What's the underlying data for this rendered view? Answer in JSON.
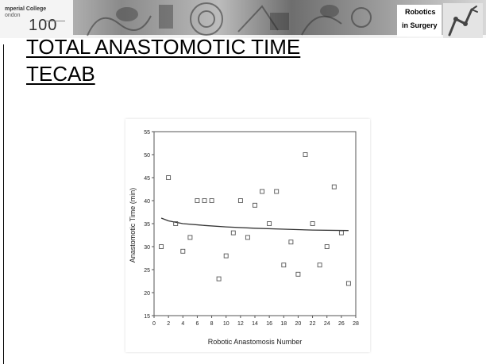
{
  "header": {
    "logo_line1": "mperial College",
    "logo_line2": "ondon",
    "logo_mark": "100",
    "banner_title_line1": "Robotics",
    "banner_title_line2": "in Surgery",
    "icon": "robot-arm-icon"
  },
  "slide": {
    "title_line1": "TOTAL ANASTOMOTIC TIME",
    "title_line2": "TECAB"
  },
  "chart_data": {
    "type": "scatter",
    "xlabel": "Robotic Anastomosis Number",
    "ylabel": "Anastomotic Time (min)",
    "xlim": [
      0,
      28
    ],
    "ylim": [
      15,
      55
    ],
    "xticks": [
      0,
      2,
      4,
      6,
      8,
      10,
      12,
      14,
      16,
      18,
      20,
      22,
      24,
      26,
      28
    ],
    "yticks": [
      15,
      20,
      25,
      30,
      35,
      40,
      45,
      50,
      55
    ],
    "grid": false,
    "points": [
      {
        "x": 1,
        "y": 30
      },
      {
        "x": 2,
        "y": 45
      },
      {
        "x": 3,
        "y": 35
      },
      {
        "x": 4,
        "y": 29
      },
      {
        "x": 5,
        "y": 32
      },
      {
        "x": 6,
        "y": 40
      },
      {
        "x": 7,
        "y": 40
      },
      {
        "x": 8,
        "y": 40
      },
      {
        "x": 9,
        "y": 23
      },
      {
        "x": 10,
        "y": 28
      },
      {
        "x": 11,
        "y": 33
      },
      {
        "x": 12,
        "y": 40
      },
      {
        "x": 13,
        "y": 32
      },
      {
        "x": 14,
        "y": 39
      },
      {
        "x": 15,
        "y": 42
      },
      {
        "x": 16,
        "y": 35
      },
      {
        "x": 17,
        "y": 42
      },
      {
        "x": 18,
        "y": 26
      },
      {
        "x": 19,
        "y": 31
      },
      {
        "x": 20,
        "y": 24
      },
      {
        "x": 21,
        "y": 50
      },
      {
        "x": 22,
        "y": 35
      },
      {
        "x": 23,
        "y": 26
      },
      {
        "x": 24,
        "y": 30
      },
      {
        "x": 25,
        "y": 43
      },
      {
        "x": 26,
        "y": 33
      },
      {
        "x": 27,
        "y": 22
      }
    ],
    "trendline": [
      {
        "x": 1,
        "y": 36.2
      },
      {
        "x": 2,
        "y": 35.6
      },
      {
        "x": 4,
        "y": 35.0
      },
      {
        "x": 7,
        "y": 34.6
      },
      {
        "x": 10,
        "y": 34.3
      },
      {
        "x": 14,
        "y": 34.0
      },
      {
        "x": 18,
        "y": 33.8
      },
      {
        "x": 22,
        "y": 33.6
      },
      {
        "x": 27,
        "y": 33.5
      }
    ],
    "marker_color": "#555555",
    "trend_color": "#333333"
  }
}
